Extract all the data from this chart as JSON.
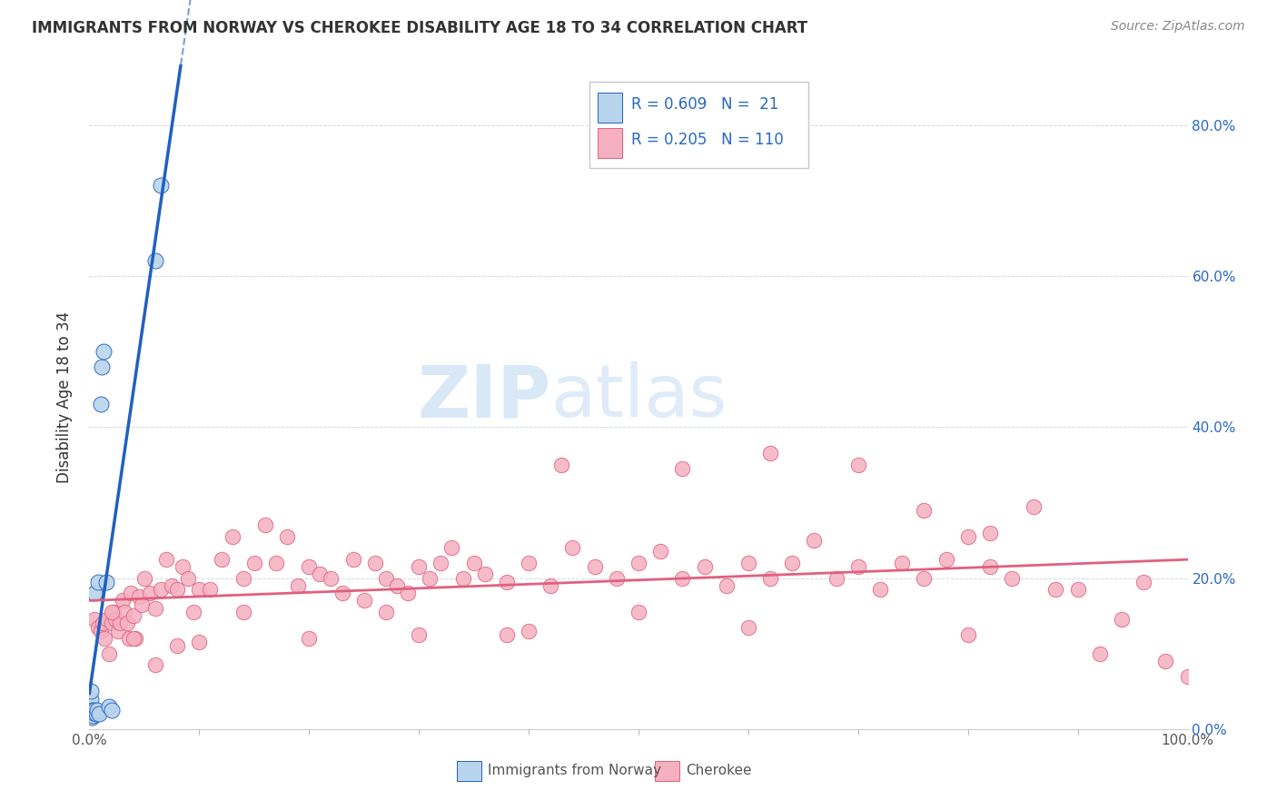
{
  "title": "IMMIGRANTS FROM NORWAY VS CHEROKEE DISABILITY AGE 18 TO 34 CORRELATION CHART",
  "source": "Source: ZipAtlas.com",
  "ylabel": "Disability Age 18 to 34",
  "R1": "0.609",
  "N1": "21",
  "R2": "0.205",
  "N2": "110",
  "norway_color": "#b8d4ec",
  "cherokee_color": "#f5b0c0",
  "norway_line_color": "#2060c0",
  "cherokee_line_color": "#e06080",
  "legend_text_color": "#2868c8",
  "legend1_label": "Immigrants from Norway",
  "legend2_label": "Cherokee",
  "xlim": [
    0.0,
    1.0
  ],
  "ylim": [
    0.0,
    0.88
  ],
  "ytick_vals": [
    0.0,
    0.2,
    0.4,
    0.6,
    0.8
  ],
  "norway_x": [
    0.001,
    0.001,
    0.001,
    0.002,
    0.002,
    0.003,
    0.004,
    0.005,
    0.005,
    0.006,
    0.007,
    0.008,
    0.009,
    0.01,
    0.011,
    0.013,
    0.015,
    0.018,
    0.02,
    0.06,
    0.065
  ],
  "norway_y": [
    0.02,
    0.04,
    0.05,
    0.015,
    0.025,
    0.018,
    0.022,
    0.18,
    0.025,
    0.02,
    0.025,
    0.195,
    0.02,
    0.43,
    0.48,
    0.5,
    0.195,
    0.03,
    0.025,
    0.62,
    0.72
  ],
  "cherokee_x": [
    0.005,
    0.008,
    0.01,
    0.012,
    0.014,
    0.016,
    0.018,
    0.02,
    0.022,
    0.024,
    0.026,
    0.028,
    0.03,
    0.032,
    0.034,
    0.036,
    0.038,
    0.04,
    0.042,
    0.045,
    0.048,
    0.05,
    0.055,
    0.06,
    0.065,
    0.07,
    0.075,
    0.08,
    0.085,
    0.09,
    0.095,
    0.1,
    0.11,
    0.12,
    0.13,
    0.14,
    0.15,
    0.16,
    0.17,
    0.18,
    0.19,
    0.2,
    0.21,
    0.22,
    0.23,
    0.24,
    0.25,
    0.26,
    0.27,
    0.28,
    0.29,
    0.3,
    0.31,
    0.32,
    0.33,
    0.34,
    0.35,
    0.36,
    0.38,
    0.4,
    0.42,
    0.44,
    0.46,
    0.48,
    0.5,
    0.52,
    0.54,
    0.56,
    0.58,
    0.6,
    0.62,
    0.64,
    0.66,
    0.68,
    0.7,
    0.72,
    0.74,
    0.76,
    0.78,
    0.8,
    0.82,
    0.84,
    0.86,
    0.88,
    0.9,
    0.92,
    0.94,
    0.96,
    0.98,
    1.0,
    0.43,
    0.54,
    0.62,
    0.7,
    0.76,
    0.82,
    0.14,
    0.27,
    0.38,
    0.5,
    0.02,
    0.04,
    0.06,
    0.08,
    0.1,
    0.2,
    0.3,
    0.4,
    0.6,
    0.8
  ],
  "cherokee_y": [
    0.145,
    0.135,
    0.13,
    0.14,
    0.12,
    0.145,
    0.1,
    0.14,
    0.155,
    0.145,
    0.13,
    0.14,
    0.17,
    0.155,
    0.14,
    0.12,
    0.18,
    0.15,
    0.12,
    0.175,
    0.165,
    0.2,
    0.18,
    0.16,
    0.185,
    0.225,
    0.19,
    0.185,
    0.215,
    0.2,
    0.155,
    0.185,
    0.185,
    0.225,
    0.255,
    0.2,
    0.22,
    0.27,
    0.22,
    0.255,
    0.19,
    0.215,
    0.205,
    0.2,
    0.18,
    0.225,
    0.17,
    0.22,
    0.2,
    0.19,
    0.18,
    0.215,
    0.2,
    0.22,
    0.24,
    0.2,
    0.22,
    0.205,
    0.195,
    0.22,
    0.19,
    0.24,
    0.215,
    0.2,
    0.22,
    0.235,
    0.2,
    0.215,
    0.19,
    0.22,
    0.2,
    0.22,
    0.25,
    0.2,
    0.215,
    0.185,
    0.22,
    0.2,
    0.225,
    0.255,
    0.215,
    0.2,
    0.295,
    0.185,
    0.185,
    0.1,
    0.145,
    0.195,
    0.09,
    0.07,
    0.35,
    0.345,
    0.365,
    0.35,
    0.29,
    0.26,
    0.155,
    0.155,
    0.125,
    0.155,
    0.155,
    0.12,
    0.085,
    0.11,
    0.115,
    0.12,
    0.125,
    0.13,
    0.135,
    0.125
  ]
}
